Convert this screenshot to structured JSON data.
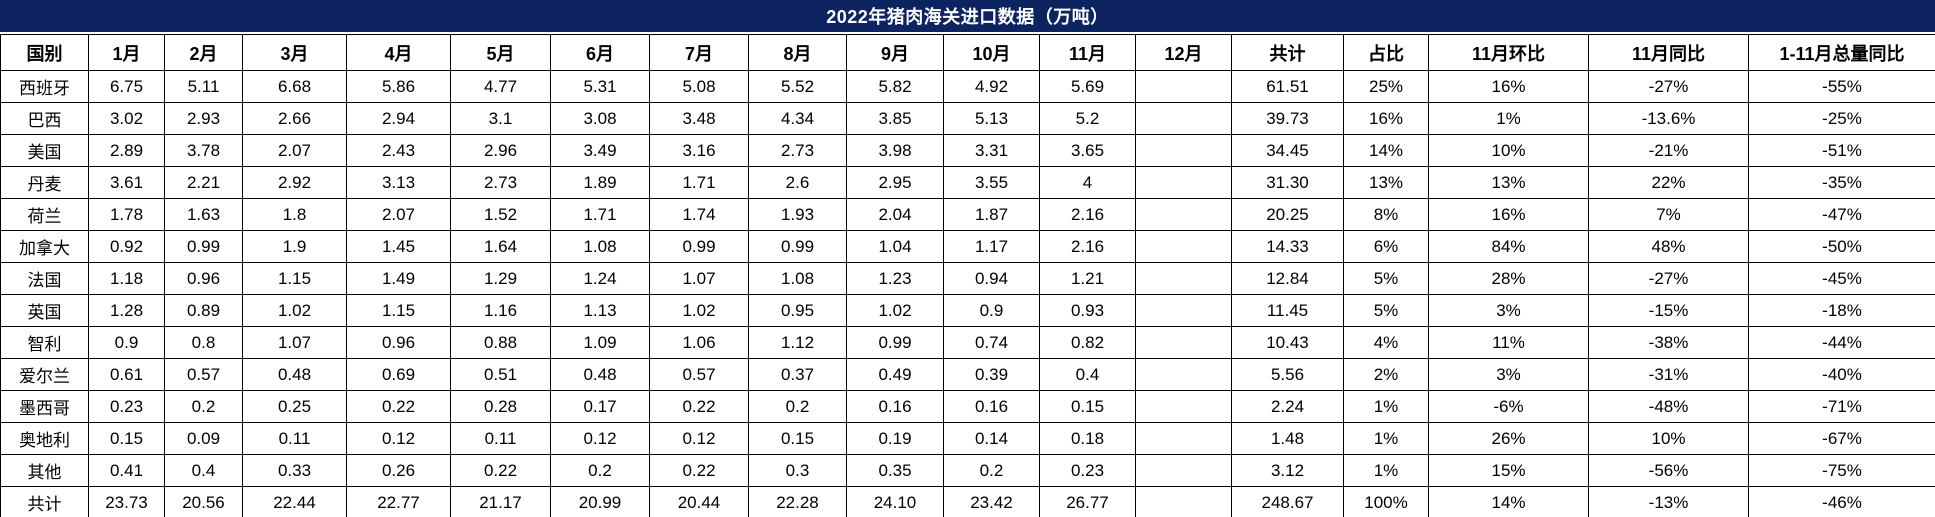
{
  "title": "2022年猪肉海关进口数据（万吨）",
  "colors": {
    "title_bg": "#0e2461",
    "title_text": "#ffffff",
    "grid": "#000000",
    "cell_bg": "#ffffff"
  },
  "table": {
    "columns": [
      "国别",
      "1月",
      "2月",
      "3月",
      "4月",
      "5月",
      "6月",
      "7月",
      "8月",
      "9月",
      "10月",
      "11月",
      "12月",
      "共计",
      "占比",
      "11月环比",
      "11月同比",
      "1-11月总量同比"
    ],
    "rows": [
      [
        "西班牙",
        "6.75",
        "5.11",
        "6.68",
        "5.86",
        "4.77",
        "5.31",
        "5.08",
        "5.52",
        "5.82",
        "4.92",
        "5.69",
        "",
        "61.51",
        "25%",
        "16%",
        "-27%",
        "-55%"
      ],
      [
        "巴西",
        "3.02",
        "2.93",
        "2.66",
        "2.94",
        "3.1",
        "3.08",
        "3.48",
        "4.34",
        "3.85",
        "5.13",
        "5.2",
        "",
        "39.73",
        "16%",
        "1%",
        "-13.6%",
        "-25%"
      ],
      [
        "美国",
        "2.89",
        "3.78",
        "2.07",
        "2.43",
        "2.96",
        "3.49",
        "3.16",
        "2.73",
        "3.98",
        "3.31",
        "3.65",
        "",
        "34.45",
        "14%",
        "10%",
        "-21%",
        "-51%"
      ],
      [
        "丹麦",
        "3.61",
        "2.21",
        "2.92",
        "3.13",
        "2.73",
        "1.89",
        "1.71",
        "2.6",
        "2.95",
        "3.55",
        "4",
        "",
        "31.30",
        "13%",
        "13%",
        "22%",
        "-35%"
      ],
      [
        "荷兰",
        "1.78",
        "1.63",
        "1.8",
        "2.07",
        "1.52",
        "1.71",
        "1.74",
        "1.93",
        "2.04",
        "1.87",
        "2.16",
        "",
        "20.25",
        "8%",
        "16%",
        "7%",
        "-47%"
      ],
      [
        "加拿大",
        "0.92",
        "0.99",
        "1.9",
        "1.45",
        "1.64",
        "1.08",
        "0.99",
        "0.99",
        "1.04",
        "1.17",
        "2.16",
        "",
        "14.33",
        "6%",
        "84%",
        "48%",
        "-50%"
      ],
      [
        "法国",
        "1.18",
        "0.96",
        "1.15",
        "1.49",
        "1.29",
        "1.24",
        "1.07",
        "1.08",
        "1.23",
        "0.94",
        "1.21",
        "",
        "12.84",
        "5%",
        "28%",
        "-27%",
        "-45%"
      ],
      [
        "英国",
        "1.28",
        "0.89",
        "1.02",
        "1.15",
        "1.16",
        "1.13",
        "1.02",
        "0.95",
        "1.02",
        "0.9",
        "0.93",
        "",
        "11.45",
        "5%",
        "3%",
        "-15%",
        "-18%"
      ],
      [
        "智利",
        "0.9",
        "0.8",
        "1.07",
        "0.96",
        "0.88",
        "1.09",
        "1.06",
        "1.12",
        "0.99",
        "0.74",
        "0.82",
        "",
        "10.43",
        "4%",
        "11%",
        "-38%",
        "-44%"
      ],
      [
        "爱尔兰",
        "0.61",
        "0.57",
        "0.48",
        "0.69",
        "0.51",
        "0.48",
        "0.57",
        "0.37",
        "0.49",
        "0.39",
        "0.4",
        "",
        "5.56",
        "2%",
        "3%",
        "-31%",
        "-40%"
      ],
      [
        "墨西哥",
        "0.23",
        "0.2",
        "0.25",
        "0.22",
        "0.28",
        "0.17",
        "0.22",
        "0.2",
        "0.16",
        "0.16",
        "0.15",
        "",
        "2.24",
        "1%",
        "-6%",
        "-48%",
        "-71%"
      ],
      [
        "奥地利",
        "0.15",
        "0.09",
        "0.11",
        "0.12",
        "0.11",
        "0.12",
        "0.12",
        "0.15",
        "0.19",
        "0.14",
        "0.18",
        "",
        "1.48",
        "1%",
        "26%",
        "10%",
        "-67%"
      ],
      [
        "其他",
        "0.41",
        "0.4",
        "0.33",
        "0.26",
        "0.22",
        "0.2",
        "0.22",
        "0.3",
        "0.35",
        "0.2",
        "0.23",
        "",
        "3.12",
        "1%",
        "15%",
        "-56%",
        "-75%"
      ],
      [
        "共计",
        "23.73",
        "20.56",
        "22.44",
        "22.77",
        "21.17",
        "20.99",
        "20.44",
        "22.28",
        "24.10",
        "23.42",
        "26.77",
        "",
        "248.67",
        "100%",
        "14%",
        "-13%",
        "-46%"
      ]
    ]
  }
}
